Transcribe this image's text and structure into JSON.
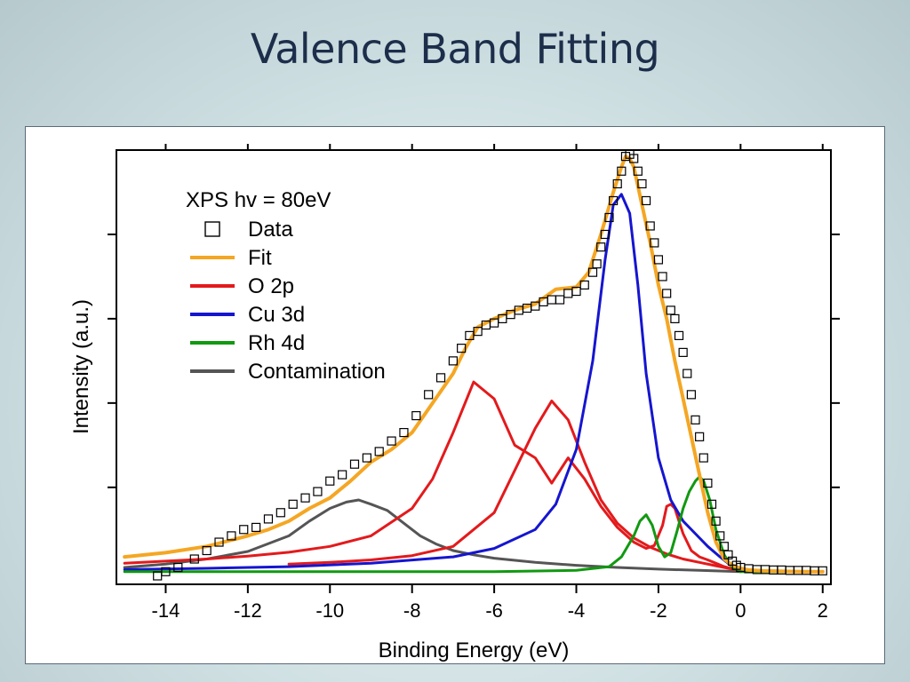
{
  "slide": {
    "title": "Valence Band Fitting"
  },
  "chart_data": {
    "type": "line",
    "title": "",
    "xlabel": "Binding Energy (eV)",
    "ylabel": "Intensity (a.u.)",
    "xlim": [
      -15.2,
      2.2
    ],
    "ylim": [
      -0.03,
      1.0
    ],
    "x_ticks": [
      -14,
      -12,
      -10,
      -8,
      -6,
      -4,
      -2,
      0,
      2
    ],
    "x_tick_labels": [
      "-14",
      "-12",
      "-10",
      "-8",
      "-6",
      "-4",
      "-2",
      "0",
      "2"
    ],
    "y_ticks": [
      0.2,
      0.4,
      0.6,
      0.8
    ],
    "y_tick_labels_visible": false,
    "grid": false,
    "legend": {
      "title": "XPS hv = 80eV",
      "placement": "top-left",
      "entries": [
        {
          "name": "Data",
          "marker": "open-square",
          "color": "#000000"
        },
        {
          "name": "Fit",
          "marker": "line",
          "color": "#f5a623"
        },
        {
          "name": "O 2p",
          "marker": "line",
          "color": "#e31a1c"
        },
        {
          "name": "Cu 3d",
          "marker": "line",
          "color": "#1515d0"
        },
        {
          "name": "Rh 4d",
          "marker": "line",
          "color": "#119911"
        },
        {
          "name": "Contamination",
          "marker": "line",
          "color": "#555555"
        }
      ]
    },
    "series": [
      {
        "name": "O 2p",
        "color": "#e31a1c",
        "x": [
          -15.0,
          -14.0,
          -13.0,
          -12.0,
          -11.0,
          -10.0,
          -9.0,
          -8.0,
          -7.5,
          -7.0,
          -6.5,
          -6.0,
          -5.5,
          -5.0,
          -4.6,
          -4.2,
          -3.8,
          -3.4,
          -3.0,
          -2.6,
          -2.3,
          -2.1,
          -1.9,
          -1.8,
          -1.7,
          -1.6,
          -1.5,
          -1.4,
          -1.2,
          -1.0,
          -0.8,
          -0.6,
          -0.4,
          -0.2,
          0.0,
          0.2
        ],
        "y": [
          0.02,
          0.025,
          0.03,
          0.037,
          0.046,
          0.06,
          0.085,
          0.15,
          0.22,
          0.33,
          0.45,
          0.41,
          0.3,
          0.27,
          0.21,
          0.27,
          0.22,
          0.155,
          0.105,
          0.07,
          0.055,
          0.062,
          0.11,
          0.155,
          0.16,
          0.15,
          0.12,
          0.09,
          0.05,
          0.035,
          0.028,
          0.02,
          0.012,
          0.007,
          0.003,
          0.0
        ]
      },
      {
        "name": "O 2p (second)",
        "color": "#e31a1c",
        "x": [
          -11.0,
          -10.0,
          -9.0,
          -8.0,
          -7.0,
          -6.0,
          -5.5,
          -5.0,
          -4.6,
          -4.2,
          -3.8,
          -3.4,
          -3.0,
          -2.6,
          -2.2,
          -1.8,
          -1.4,
          -1.0,
          -0.6,
          -0.2,
          0.2
        ],
        "y": [
          0.018,
          0.022,
          0.028,
          0.038,
          0.06,
          0.14,
          0.24,
          0.34,
          0.405,
          0.36,
          0.26,
          0.17,
          0.115,
          0.08,
          0.058,
          0.042,
          0.03,
          0.022,
          0.014,
          0.006,
          0.0
        ]
      },
      {
        "name": "Cu 3d",
        "color": "#1515d0",
        "x": [
          -15.0,
          -13.0,
          -11.0,
          -9.0,
          -7.0,
          -6.0,
          -5.0,
          -4.5,
          -4.0,
          -3.6,
          -3.3,
          -3.1,
          -2.9,
          -2.7,
          -2.5,
          -2.3,
          -2.0,
          -1.7,
          -1.4,
          -1.1,
          -0.8,
          -0.5,
          -0.2,
          0.1
        ],
        "y": [
          0.005,
          0.008,
          0.012,
          0.02,
          0.035,
          0.055,
          0.1,
          0.16,
          0.29,
          0.5,
          0.74,
          0.87,
          0.895,
          0.85,
          0.68,
          0.47,
          0.27,
          0.17,
          0.12,
          0.09,
          0.06,
          0.035,
          0.012,
          0.0
        ]
      },
      {
        "name": "Rh 4d",
        "color": "#119911",
        "x": [
          -15.0,
          -6.0,
          -4.0,
          -3.2,
          -2.9,
          -2.6,
          -2.45,
          -2.3,
          -2.15,
          -2.0,
          -1.85,
          -1.7,
          -1.55,
          -1.4,
          -1.25,
          -1.1,
          -1.0,
          -0.9,
          -0.75,
          -0.6,
          -0.4,
          -0.2,
          0.0,
          2.0
        ],
        "y": [
          0.0,
          0.0,
          0.003,
          0.012,
          0.035,
          0.085,
          0.12,
          0.135,
          0.11,
          0.06,
          0.035,
          0.045,
          0.095,
          0.15,
          0.19,
          0.215,
          0.225,
          0.215,
          0.17,
          0.1,
          0.04,
          0.01,
          0.0,
          0.0
        ]
      },
      {
        "name": "Contamination",
        "color": "#555555",
        "x": [
          -15.0,
          -14.0,
          -13.0,
          -12.0,
          -11.0,
          -10.5,
          -10.0,
          -9.6,
          -9.3,
          -9.0,
          -8.6,
          -8.2,
          -7.8,
          -7.4,
          -7.0,
          -6.5,
          -6.0,
          -5.0,
          -4.0,
          -3.0,
          -2.0,
          -1.0,
          0.0
        ],
        "y": [
          0.01,
          0.018,
          0.03,
          0.048,
          0.085,
          0.12,
          0.15,
          0.165,
          0.17,
          0.16,
          0.145,
          0.115,
          0.085,
          0.065,
          0.05,
          0.04,
          0.032,
          0.022,
          0.015,
          0.01,
          0.006,
          0.003,
          0.0
        ]
      },
      {
        "name": "Fit",
        "color": "#f5a623",
        "x": [
          -15.0,
          -14.0,
          -13.0,
          -12.0,
          -11.5,
          -11.0,
          -10.5,
          -10.0,
          -9.5,
          -9.0,
          -8.5,
          -8.0,
          -7.5,
          -7.0,
          -6.7,
          -6.4,
          -6.0,
          -5.5,
          -5.0,
          -4.5,
          -4.0,
          -3.7,
          -3.4,
          -3.1,
          -2.9,
          -2.8,
          -2.7,
          -2.6,
          -2.4,
          -2.2,
          -2.0,
          -1.8,
          -1.6,
          -1.4,
          -1.2,
          -1.0,
          -0.8,
          -0.6,
          -0.4,
          -0.2,
          0.0,
          0.2,
          0.5,
          1.0,
          1.5,
          2.0
        ],
        "y": [
          0.035,
          0.045,
          0.06,
          0.085,
          0.1,
          0.12,
          0.15,
          0.175,
          0.215,
          0.26,
          0.29,
          0.33,
          0.4,
          0.47,
          0.53,
          0.58,
          0.6,
          0.62,
          0.635,
          0.67,
          0.675,
          0.71,
          0.8,
          0.9,
          0.96,
          0.985,
          0.98,
          0.96,
          0.87,
          0.78,
          0.68,
          0.6,
          0.5,
          0.41,
          0.32,
          0.23,
          0.14,
          0.07,
          0.03,
          0.015,
          0.008,
          0.004,
          0.002,
          0.001,
          0.0,
          0.0
        ]
      },
      {
        "name": "Data",
        "color": "#000000",
        "marker": "open-square",
        "x": [
          -14.2,
          -14.0,
          -13.7,
          -13.3,
          -13.0,
          -12.7,
          -12.4,
          -12.1,
          -11.8,
          -11.5,
          -11.2,
          -10.9,
          -10.6,
          -10.3,
          -10.0,
          -9.7,
          -9.4,
          -9.1,
          -8.8,
          -8.5,
          -8.2,
          -7.9,
          -7.6,
          -7.3,
          -7.0,
          -6.8,
          -6.6,
          -6.4,
          -6.2,
          -6.0,
          -5.8,
          -5.6,
          -5.4,
          -5.2,
          -5.0,
          -4.8,
          -4.6,
          -4.4,
          -4.2,
          -4.0,
          -3.8,
          -3.6,
          -3.5,
          -3.4,
          -3.3,
          -3.2,
          -3.1,
          -3.0,
          -2.9,
          -2.8,
          -2.7,
          -2.6,
          -2.5,
          -2.4,
          -2.3,
          -2.2,
          -2.1,
          -2.0,
          -1.9,
          -1.8,
          -1.7,
          -1.6,
          -1.5,
          -1.4,
          -1.3,
          -1.2,
          -1.1,
          -1.0,
          -0.9,
          -0.8,
          -0.7,
          -0.6,
          -0.5,
          -0.4,
          -0.3,
          -0.2,
          -0.1,
          0.0,
          0.2,
          0.4,
          0.6,
          0.8,
          1.0,
          1.2,
          1.4,
          1.6,
          1.8,
          2.0
        ],
        "y": [
          -0.01,
          0.0,
          0.01,
          0.03,
          0.05,
          0.07,
          0.085,
          0.1,
          0.105,
          0.125,
          0.14,
          0.16,
          0.175,
          0.19,
          0.215,
          0.23,
          0.255,
          0.27,
          0.285,
          0.31,
          0.33,
          0.37,
          0.42,
          0.46,
          0.5,
          0.53,
          0.56,
          0.57,
          0.585,
          0.59,
          0.6,
          0.61,
          0.62,
          0.625,
          0.63,
          0.64,
          0.645,
          0.645,
          0.66,
          0.665,
          0.68,
          0.71,
          0.73,
          0.77,
          0.8,
          0.84,
          0.88,
          0.92,
          0.95,
          0.985,
          0.99,
          0.98,
          0.95,
          0.92,
          0.88,
          0.82,
          0.78,
          0.74,
          0.7,
          0.66,
          0.62,
          0.6,
          0.56,
          0.52,
          0.47,
          0.42,
          0.36,
          0.32,
          0.27,
          0.21,
          0.16,
          0.12,
          0.085,
          0.06,
          0.04,
          0.025,
          0.015,
          0.01,
          0.007,
          0.005,
          0.005,
          0.004,
          0.004,
          0.003,
          0.003,
          0.003,
          0.002,
          0.002
        ]
      }
    ]
  }
}
